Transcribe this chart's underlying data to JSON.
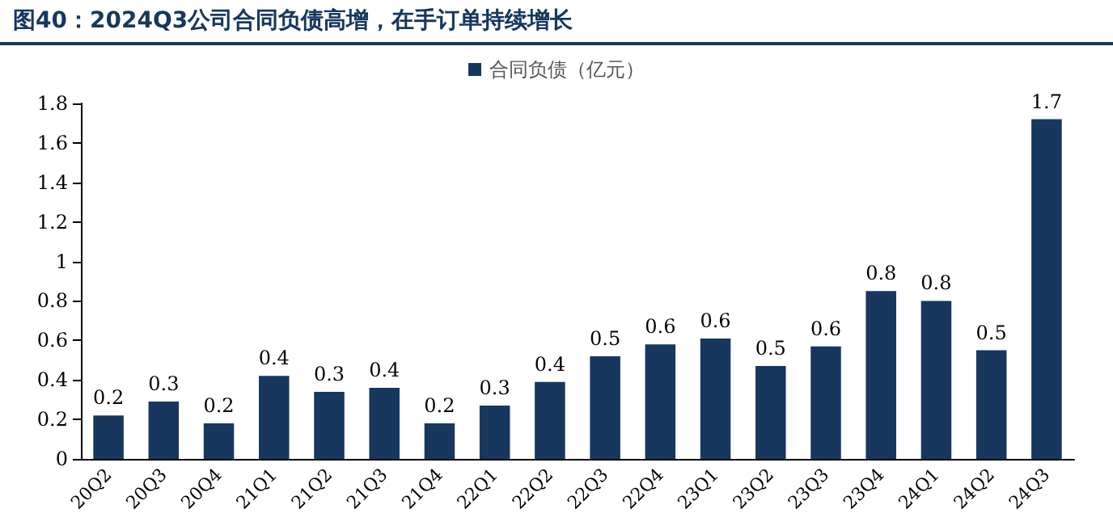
{
  "chart_data": {
    "type": "bar",
    "title": "图40：2024Q3公司合同负债高增，在手订单持续增长",
    "categories": [
      "20Q2",
      "20Q3",
      "20Q4",
      "21Q1",
      "21Q2",
      "21Q3",
      "21Q4",
      "22Q1",
      "22Q2",
      "22Q3",
      "22Q4",
      "23Q1",
      "23Q2",
      "23Q3",
      "23Q4",
      "24Q1",
      "24Q2",
      "24Q3"
    ],
    "series": [
      {
        "name": "合同负债（亿元）",
        "color": "#17375e",
        "values": [
          0.22,
          0.29,
          0.18,
          0.42,
          0.34,
          0.36,
          0.18,
          0.27,
          0.39,
          0.52,
          0.58,
          0.61,
          0.47,
          0.57,
          0.85,
          0.8,
          0.55,
          1.72
        ],
        "value_labels": [
          "0.2",
          "0.3",
          "0.2",
          "0.4",
          "0.3",
          "0.4",
          "0.2",
          "0.3",
          "0.4",
          "0.5",
          "0.6",
          "0.6",
          "0.5",
          "0.6",
          "0.8",
          "0.8",
          "0.5",
          "1.7"
        ]
      }
    ],
    "ylim": [
      0,
      1.8
    ],
    "yticks": [
      0,
      0.2,
      0.4,
      0.6,
      0.8,
      1,
      1.2,
      1.4,
      1.6,
      1.8
    ],
    "grid": false,
    "legend": "top"
  }
}
